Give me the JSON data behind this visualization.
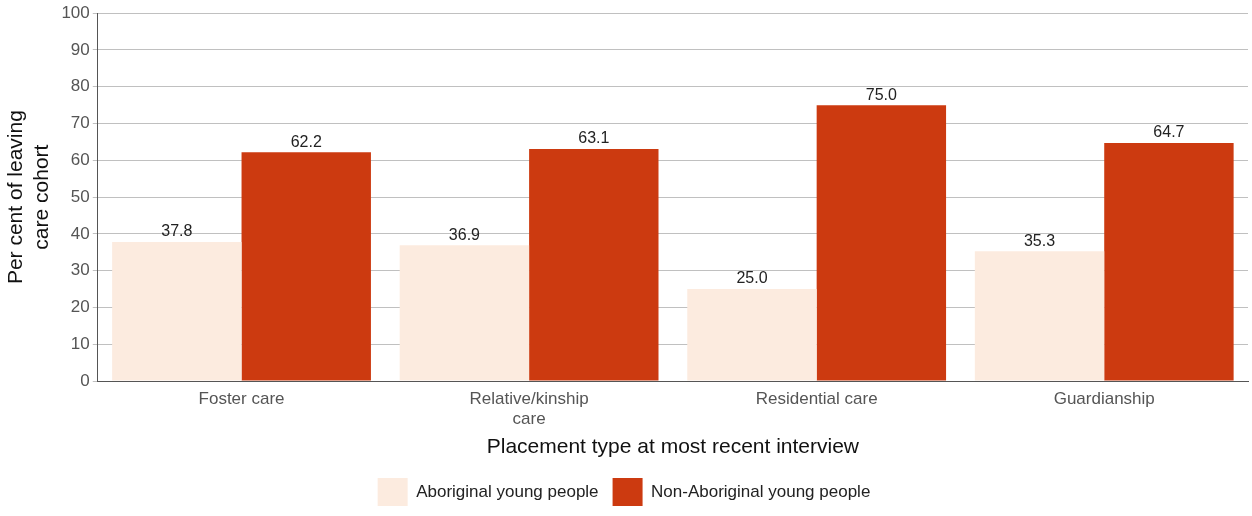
{
  "chart_data": {
    "type": "bar",
    "xlabel": "Placement type at most recent interview",
    "ylabel": "Per cent of leaving care cohort",
    "categories": [
      "Foster care",
      "Relative/kinship care",
      "Residential care",
      "Guardianship"
    ],
    "series": [
      {
        "name": "Aboriginal young people",
        "color": "#fcebdf",
        "values": [
          37.8,
          36.9,
          25.0,
          35.3
        ],
        "value_labels": [
          "37.8",
          "36.9",
          "25.0",
          "35.3"
        ]
      },
      {
        "name": "Non-Aboriginal young people",
        "color": "#cc3a10",
        "values": [
          62.2,
          63.1,
          75.0,
          64.7
        ],
        "value_labels": [
          "62.2",
          "63.1",
          "75.0",
          "64.7"
        ]
      }
    ],
    "ylim": [
      0,
      100
    ],
    "yticks": [
      0,
      10,
      20,
      30,
      40,
      50,
      60,
      70,
      80,
      90,
      100
    ],
    "grid": "y",
    "legend": "bottom"
  }
}
